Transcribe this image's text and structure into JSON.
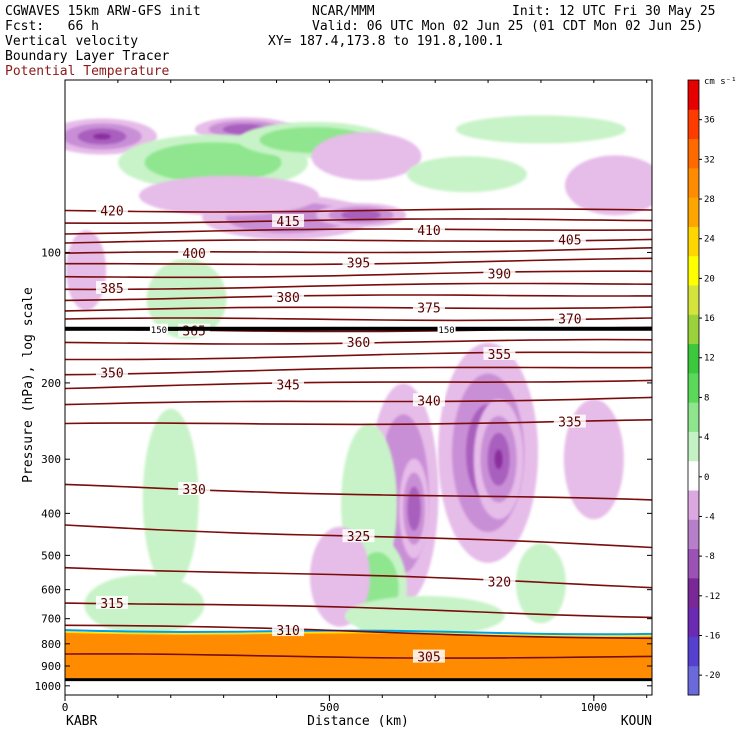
{
  "header": {
    "model": "CGWAVES 15km ARW-GFS init",
    "fcst": "Fcst:   66 h",
    "org": "NCAR/MMM",
    "init": "Init: 12 UTC Fri 30 May 25",
    "valid": "Valid: 06 UTC Mon 02 Jun 25 (01 CDT Mon 02 Jun 25)",
    "xy": "XY= 187.4,173.8 to 191.8,100.1",
    "field1": "Vertical velocity",
    "field2": "Boundary Layer Tracer",
    "field3": "Potential Temperature"
  },
  "colorbar": {
    "unit": "cm s⁻¹",
    "colors": [
      "#6a6adc",
      "#5540d0",
      "#6a2ab4",
      "#7a2898",
      "#9a52b4",
      "#b77ec9",
      "#dca8e2",
      "#ffffff",
      "#c4f2c4",
      "#8ee58e",
      "#5ad85a",
      "#3cc83c",
      "#9ad23c",
      "#d4e43c",
      "#ffff00",
      "#ffd700",
      "#ffa500",
      "#ff8c00",
      "#ff6a00",
      "#ff3c00",
      "#e60000"
    ],
    "labels": [
      "-20",
      "-16",
      "-12",
      "-8",
      "-4",
      "0",
      "4",
      "8",
      "12",
      "16",
      "20",
      "24",
      "28",
      "32",
      "36"
    ],
    "label_values": [
      -20,
      -16,
      -12,
      -8,
      -4,
      0,
      4,
      8,
      12,
      16,
      20,
      24,
      28,
      32,
      36
    ]
  },
  "chart_data": {
    "type": "heatmap",
    "title": "Vertical velocity / Boundary Layer Tracer / Potential Temperature cross section",
    "xlabel": "Distance (km)",
    "ylabel": "Pressure (hPa), log scale",
    "xlim": [
      0,
      1110
    ],
    "ylim": [
      1050,
      40
    ],
    "x_ticks": [
      0,
      500,
      1000
    ],
    "x_tick_labels": [
      "0",
      "500",
      "1000"
    ],
    "y_ticks": [
      100,
      200,
      300,
      400,
      500,
      600,
      700,
      800,
      900,
      1000
    ],
    "y_tick_labels": [
      "100",
      "200",
      "300",
      "400",
      "500",
      "600",
      "700",
      "800",
      "900",
      "1000"
    ],
    "left_endpoint": "KABR",
    "right_endpoint": "KOUN",
    "theta_contours": [
      {
        "theta": 420,
        "label": "420",
        "p_left": 80,
        "p_right": 80
      },
      {
        "theta": 415,
        "label": "415",
        "p_left": 85,
        "p_right": 84
      },
      {
        "theta": 410,
        "label": "410",
        "p_left": 90,
        "p_right": 88
      },
      {
        "theta": 405,
        "label": "405",
        "p_left": 95,
        "p_right": 93
      },
      {
        "theta": 400,
        "label": "400",
        "p_left": 101,
        "p_right": 98
      },
      {
        "theta": 395,
        "label": "395",
        "p_left": 107,
        "p_right": 104
      },
      {
        "theta": 390,
        "label": "390",
        "p_left": 114,
        "p_right": 111
      },
      {
        "theta": 385,
        "label": "385",
        "p_left": 121,
        "p_right": 118
      },
      {
        "theta": 380,
        "label": "380",
        "p_left": 128,
        "p_right": 125
      },
      {
        "theta": 375,
        "label": "375",
        "p_left": 136,
        "p_right": 133
      },
      {
        "theta": 370,
        "label": "370",
        "p_left": 143,
        "p_right": 142
      },
      {
        "theta": 365,
        "label": "365",
        "p_left": 152,
        "p_right": 150
      },
      {
        "theta": 360,
        "label": "360",
        "p_left": 162,
        "p_right": 160
      },
      {
        "theta": 355,
        "label": "355",
        "p_left": 176,
        "p_right": 170
      },
      {
        "theta": 350,
        "label": "350",
        "p_left": 190,
        "p_right": 183
      },
      {
        "theta": 345,
        "label": "345",
        "p_left": 205,
        "p_right": 196
      },
      {
        "theta": 340,
        "label": "340",
        "p_left": 225,
        "p_right": 216
      },
      {
        "theta": 335,
        "label": "335",
        "p_left": 250,
        "p_right": 245
      },
      {
        "theta": 330,
        "label": "330",
        "p_left": 345,
        "p_right": 375
      },
      {
        "theta": 325,
        "label": "325",
        "p_left": 425,
        "p_right": 480
      },
      {
        "theta": 320,
        "label": "320",
        "p_left": 530,
        "p_right": 590
      },
      {
        "theta": 315,
        "label": "315",
        "p_left": 640,
        "p_right": 690
      },
      {
        "theta": 310,
        "label": "310",
        "p_left": 725,
        "p_right": 775
      },
      {
        "theta": 305,
        "label": "305",
        "p_left": 850,
        "p_right": 860
      }
    ],
    "tropopause": {
      "label": "150",
      "pressure": 150
    },
    "boundary_layer": {
      "top_p_left": 752,
      "top_p_right": 765,
      "bottom_p": 960
    },
    "w_regions": [
      {
        "sign": "down",
        "level": 4,
        "x": 70,
        "p": 54,
        "rx": 55,
        "ry": 18
      },
      {
        "sign": "down",
        "level": 3,
        "x": 340,
        "p": 52,
        "rx": 50,
        "ry": 12
      },
      {
        "sign": "down",
        "level": 2,
        "x": 440,
        "p": 55,
        "rx": 40,
        "ry": 14
      },
      {
        "sign": "up",
        "level": 2,
        "x": 280,
        "p": 62,
        "rx": 95,
        "ry": 28
      },
      {
        "sign": "up",
        "level": 2,
        "x": 470,
        "p": 55,
        "rx": 75,
        "ry": 18
      },
      {
        "sign": "up",
        "level": 1,
        "x": 900,
        "p": 52,
        "rx": 85,
        "ry": 14
      },
      {
        "sign": "down",
        "level": 1,
        "x": 570,
        "p": 60,
        "rx": 55,
        "ry": 24
      },
      {
        "sign": "down",
        "level": 2,
        "x": 420,
        "p": 83,
        "rx": 85,
        "ry": 22
      },
      {
        "sign": "down",
        "level": 1,
        "x": 310,
        "p": 74,
        "rx": 90,
        "ry": 20
      },
      {
        "sign": "down",
        "level": 3,
        "x": 560,
        "p": 82,
        "rx": 45,
        "ry": 12
      },
      {
        "sign": "up",
        "level": 1,
        "x": 760,
        "p": 66,
        "rx": 60,
        "ry": 18
      },
      {
        "sign": "down",
        "level": 1,
        "x": 1040,
        "p": 70,
        "rx": 50,
        "ry": 30
      },
      {
        "sign": "up",
        "level": 1,
        "x": 230,
        "p": 128,
        "rx": 40,
        "ry": 40
      },
      {
        "sign": "down",
        "level": 1,
        "x": 40,
        "p": 110,
        "rx": 20,
        "ry": 40
      },
      {
        "sign": "down",
        "level": 2,
        "x": 640,
        "p": 360,
        "rx": 35,
        "ry": 110
      },
      {
        "sign": "down",
        "level": 3,
        "x": 660,
        "p": 390,
        "rx": 15,
        "ry": 50
      },
      {
        "sign": "down",
        "level": 3,
        "x": 800,
        "p": 290,
        "rx": 50,
        "ry": 110
      },
      {
        "sign": "down",
        "level": 4,
        "x": 820,
        "p": 300,
        "rx": 25,
        "ry": 60
      },
      {
        "sign": "up",
        "level": 1,
        "x": 200,
        "p": 370,
        "rx": 28,
        "ry": 90
      },
      {
        "sign": "up",
        "level": 1,
        "x": 575,
        "p": 380,
        "rx": 28,
        "ry": 80
      },
      {
        "sign": "up",
        "level": 2,
        "x": 590,
        "p": 595,
        "rx": 30,
        "ry": 50
      },
      {
        "sign": "up",
        "level": 1,
        "x": 900,
        "p": 580,
        "rx": 25,
        "ry": 40
      },
      {
        "sign": "up",
        "level": 1,
        "x": 150,
        "p": 650,
        "rx": 60,
        "ry": 30
      },
      {
        "sign": "down",
        "level": 1,
        "x": 1000,
        "p": 300,
        "rx": 30,
        "ry": 60
      },
      {
        "sign": "down",
        "level": 1,
        "x": 520,
        "p": 560,
        "rx": 30,
        "ry": 50
      },
      {
        "sign": "up",
        "level": 1,
        "x": 680,
        "p": 690,
        "rx": 80,
        "ry": 20
      }
    ]
  }
}
